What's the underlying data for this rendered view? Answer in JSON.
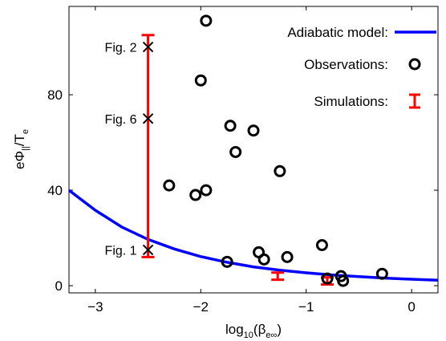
{
  "chart_data": {
    "type": "scatter",
    "xlabel": {
      "base": "log",
      "sub1": "10",
      "mid": "(β",
      "sub2": "e∞",
      "close": ")"
    },
    "ylabel": {
      "base": "eΦ",
      "sub1": "||",
      "mid": "/T",
      "sub2": "e"
    },
    "xlim": [
      -3.25,
      0.25
    ],
    "ylim": [
      -3,
      117
    ],
    "xticks": [
      -3,
      -2,
      -1,
      0
    ],
    "xtick_labels": [
      "−3",
      "−2",
      "−1",
      "0"
    ],
    "yticks": [
      0,
      40,
      80
    ],
    "ytick_labels": [
      "0",
      "40",
      "80"
    ],
    "grid": false,
    "legend": {
      "position": "top-right",
      "entries": [
        {
          "label": "Adiabatic model:",
          "marker": "line",
          "color": "#0000ff"
        },
        {
          "label": "Observations:",
          "marker": "circle",
          "color": "#000000"
        },
        {
          "label": "Simulations:",
          "marker": "errorbar",
          "color": "#ff0000"
        }
      ]
    },
    "series": [
      {
        "name": "Adiabatic model",
        "kind": "line",
        "color": "#0000ff",
        "x": [
          -3.25,
          -3.0,
          -2.75,
          -2.5,
          -2.25,
          -2.0,
          -1.75,
          -1.5,
          -1.25,
          -1.0,
          -0.75,
          -0.5,
          -0.25,
          0.0,
          0.25
        ],
        "y": [
          40.0,
          31.6,
          24.6,
          19.4,
          15.4,
          12.2,
          9.8,
          7.9,
          6.5,
          5.4,
          4.5,
          3.8,
          3.2,
          2.7,
          2.3
        ]
      },
      {
        "name": "Observations",
        "kind": "scatter",
        "color": "#000000",
        "x": [
          -1.95,
          -2.0,
          -1.72,
          -1.67,
          -1.5,
          -1.25,
          -2.3,
          -2.05,
          -1.95,
          -1.75,
          -1.45,
          -1.4,
          -1.18,
          -0.85,
          -0.8,
          -0.67,
          -0.65,
          -0.28
        ],
        "y": [
          111,
          86,
          67,
          56,
          65,
          48,
          42,
          38,
          40,
          10,
          14,
          11,
          12,
          17,
          3,
          4,
          2,
          5
        ]
      },
      {
        "name": "Simulations",
        "kind": "errorbar",
        "color": "#ff0000",
        "points": [
          {
            "x": -2.5,
            "low": 12,
            "high": 105
          },
          {
            "x": -1.27,
            "low": 2.5,
            "high": 5.5
          },
          {
            "x": -0.8,
            "low": 0.5,
            "high": 3.5
          }
        ]
      },
      {
        "name": "Figure markers",
        "kind": "cross",
        "color": "#000000",
        "x": [
          -2.5,
          -2.5,
          -2.5
        ],
        "y": [
          100,
          70,
          15
        ]
      }
    ],
    "annotations": [
      {
        "text": "Fig. 2",
        "x": -2.5,
        "y": 100
      },
      {
        "text": "Fig. 6",
        "x": -2.5,
        "y": 70
      },
      {
        "text": "Fig. 1",
        "x": -2.5,
        "y": 15
      }
    ]
  }
}
